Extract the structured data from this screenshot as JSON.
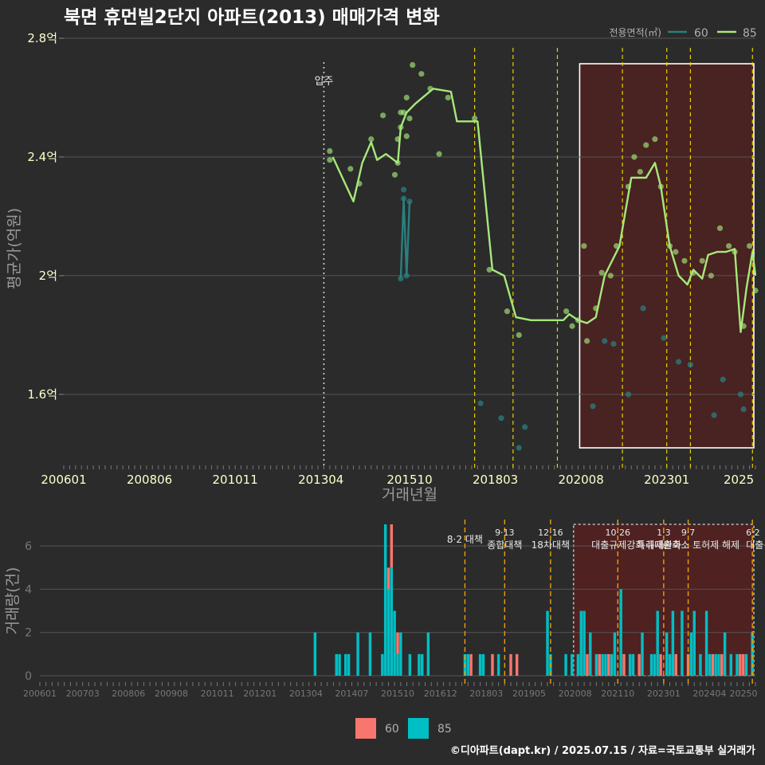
{
  "title": "북면 휴먼빌2단지 아파트(2013) 매매가격 변화",
  "caption": "©디아파트(dapt.kr) / 2025.07.15 / 자료=국토교통부 실거래가",
  "chart_data": [
    {
      "type": "line",
      "title": "북면 휴먼빌2단지 아파트(2013) 매매가격 변화",
      "xlabel": "거래년월",
      "ylabel": "평균가(억원)",
      "ylim": [
        1.35,
        2.8
      ],
      "xlim": [
        "2006-01",
        "2025-07"
      ],
      "yticks": [
        1.6,
        2.0,
        2.4,
        2.8
      ],
      "ytick_labels": [
        "1.6억",
        "2억",
        "2.4억",
        "2.8억"
      ],
      "xtick_labels": [
        "200601",
        "200806",
        "201011",
        "201304",
        "201510",
        "201803",
        "202008",
        "202301",
        "2025"
      ],
      "legend_title": "전용면적(㎡)",
      "legend_position": "top-right",
      "grid": true,
      "vline_label": "입주",
      "vline_date": "2013-05",
      "policy_dates": [
        "2017-08",
        "2018-09",
        "2019-12",
        "2021-10",
        "2023-01",
        "2023-09",
        "2025-06"
      ],
      "highlight_range": [
        "2020-07",
        "2025-07"
      ],
      "series": [
        {
          "name": "60",
          "color": "#2a7f7f",
          "line": [
            [
              "2015-07",
              1.99
            ],
            [
              "2015-08",
              2.26
            ],
            [
              "2015-09",
              2.0
            ],
            [
              "2015-10",
              2.25
            ]
          ],
          "points": [
            [
              "2015-07",
              1.99
            ],
            [
              "2015-08",
              2.29
            ],
            [
              "2015-08",
              2.26
            ],
            [
              "2015-09",
              2.0
            ],
            [
              "2015-10",
              2.25
            ],
            [
              "2017-10",
              1.57
            ],
            [
              "2018-05",
              1.52
            ],
            [
              "2018-11",
              1.42
            ],
            [
              "2019-01",
              1.49
            ],
            [
              "2020-12",
              1.56
            ],
            [
              "2021-04",
              1.78
            ],
            [
              "2021-07",
              1.77
            ],
            [
              "2021-12",
              1.6
            ],
            [
              "2022-05",
              1.89
            ],
            [
              "2022-12",
              1.79
            ],
            [
              "2023-05",
              1.71
            ],
            [
              "2023-09",
              1.7
            ],
            [
              "2024-05",
              1.53
            ],
            [
              "2024-08",
              1.65
            ],
            [
              "2025-02",
              1.6
            ],
            [
              "2025-03",
              1.55
            ]
          ]
        },
        {
          "name": "85",
          "color": "#a6e87a",
          "line": [
            [
              "2013-08",
              2.4
            ],
            [
              "2014-03",
              2.25
            ],
            [
              "2014-06",
              2.38
            ],
            [
              "2014-09",
              2.45
            ],
            [
              "2014-11",
              2.39
            ],
            [
              "2015-02",
              2.41
            ],
            [
              "2015-06",
              2.38
            ],
            [
              "2015-07",
              2.5
            ],
            [
              "2015-09",
              2.55
            ],
            [
              "2015-12",
              2.58
            ],
            [
              "2016-06",
              2.63
            ],
            [
              "2016-12",
              2.62
            ],
            [
              "2017-02",
              2.52
            ],
            [
              "2017-06",
              2.52
            ],
            [
              "2017-09",
              2.52
            ],
            [
              "2018-02",
              2.02
            ],
            [
              "2018-06",
              2.0
            ],
            [
              "2018-10",
              1.86
            ],
            [
              "2019-03",
              1.85
            ],
            [
              "2020-02",
              1.85
            ],
            [
              "2020-04",
              1.87
            ],
            [
              "2020-07",
              1.85
            ],
            [
              "2020-10",
              1.84
            ],
            [
              "2021-01",
              1.86
            ],
            [
              "2021-04",
              2.0
            ],
            [
              "2021-09",
              2.1
            ],
            [
              "2022-01",
              2.33
            ],
            [
              "2022-03",
              2.33
            ],
            [
              "2022-06",
              2.33
            ],
            [
              "2022-09",
              2.38
            ],
            [
              "2022-11",
              2.3
            ],
            [
              "2023-02",
              2.1
            ],
            [
              "2023-05",
              2.0
            ],
            [
              "2023-08",
              1.97
            ],
            [
              "2023-10",
              2.02
            ],
            [
              "2024-01",
              1.99
            ],
            [
              "2024-03",
              2.07
            ],
            [
              "2024-06",
              2.08
            ],
            [
              "2024-09",
              2.08
            ],
            [
              "2024-12",
              2.09
            ],
            [
              "2025-02",
              1.81
            ],
            [
              "2025-04",
              1.96
            ],
            [
              "2025-06",
              2.08
            ],
            [
              "2025-07",
              2.0
            ]
          ],
          "points": [
            [
              "2013-07",
              2.42
            ],
            [
              "2013-07",
              2.39
            ],
            [
              "2014-02",
              2.36
            ],
            [
              "2014-05",
              2.31
            ],
            [
              "2014-09",
              2.46
            ],
            [
              "2015-01",
              2.54
            ],
            [
              "2015-05",
              2.34
            ],
            [
              "2015-06",
              2.38
            ],
            [
              "2015-06",
              2.46
            ],
            [
              "2015-07",
              2.55
            ],
            [
              "2015-07",
              2.5
            ],
            [
              "2015-08",
              2.55
            ],
            [
              "2015-09",
              2.47
            ],
            [
              "2015-09",
              2.6
            ],
            [
              "2015-10",
              2.53
            ],
            [
              "2015-11",
              2.71
            ],
            [
              "2016-02",
              2.68
            ],
            [
              "2016-05",
              2.63
            ],
            [
              "2016-08",
              2.41
            ],
            [
              "2016-11",
              2.6
            ],
            [
              "2017-08",
              2.53
            ],
            [
              "2018-01",
              2.02
            ],
            [
              "2018-07",
              1.88
            ],
            [
              "2018-11",
              1.8
            ],
            [
              "2020-03",
              1.88
            ],
            [
              "2020-05",
              1.83
            ],
            [
              "2020-07",
              1.85
            ],
            [
              "2020-09",
              2.1
            ],
            [
              "2020-10",
              1.78
            ],
            [
              "2021-01",
              1.89
            ],
            [
              "2021-03",
              2.01
            ],
            [
              "2021-06",
              2.0
            ],
            [
              "2021-08",
              2.1
            ],
            [
              "2021-12",
              2.3
            ],
            [
              "2022-02",
              2.4
            ],
            [
              "2022-04",
              2.35
            ],
            [
              "2022-06",
              2.44
            ],
            [
              "2022-09",
              2.46
            ],
            [
              "2022-11",
              2.3
            ],
            [
              "2023-02",
              2.1
            ],
            [
              "2023-04",
              2.08
            ],
            [
              "2023-07",
              2.05
            ],
            [
              "2023-10",
              2.01
            ],
            [
              "2024-01",
              2.05
            ],
            [
              "2024-04",
              2.0
            ],
            [
              "2024-07",
              2.16
            ],
            [
              "2024-10",
              2.1
            ],
            [
              "2024-12",
              2.08
            ],
            [
              "2025-03",
              1.83
            ],
            [
              "2025-05",
              2.1
            ],
            [
              "2025-07",
              1.95
            ]
          ]
        }
      ]
    },
    {
      "type": "bar",
      "stacked": true,
      "xlabel": "",
      "ylabel": "거래량(건)",
      "ylim": [
        0,
        7
      ],
      "yticks": [
        0,
        2,
        4,
        6
      ],
      "xtick_labels": [
        "200601",
        "200703",
        "200806",
        "200908",
        "201011",
        "201201",
        "201304",
        "201407",
        "201510",
        "201612",
        "201803",
        "201905",
        "202008",
        "202110",
        "202301",
        "202404",
        "20250"
      ],
      "legend_position": "bottom",
      "policy_labels": [
        {
          "date": "2017-08",
          "lines": [
            "8·2 대책"
          ]
        },
        {
          "date": "2018-09",
          "lines": [
            "9·13",
            "종합대책"
          ]
        },
        {
          "date": "2019-12",
          "lines": [
            "12·16",
            "18차대책"
          ]
        },
        {
          "date": "2021-10",
          "lines": [
            "10·26",
            "대출규제강화"
          ]
        },
        {
          "date": "2023-01",
          "lines": [
            "1·3",
            "규제완화"
          ]
        },
        {
          "date": "2023-09",
          "lines": [
            "9·7",
            "특례대출축소 토허제 해제"
          ]
        },
        {
          "date": "2025-06",
          "lines": [
            "6·2",
            "대출규"
          ]
        }
      ],
      "highlight_range": [
        "2020-07",
        "2025-07"
      ],
      "series": [
        {
          "name": "60",
          "color": "#f8766d",
          "bars": [
            [
              "2015-07",
              1
            ],
            [
              "2015-08",
              2
            ],
            [
              "2015-10",
              1
            ],
            [
              "2017-10",
              1
            ],
            [
              "2018-05",
              1
            ],
            [
              "2018-11",
              1
            ],
            [
              "2019-01",
              1
            ],
            [
              "2020-12",
              1
            ],
            [
              "2021-04",
              1
            ],
            [
              "2021-07",
              1
            ],
            [
              "2021-12",
              1
            ],
            [
              "2022-05",
              1
            ],
            [
              "2022-12",
              1
            ],
            [
              "2023-05",
              1
            ],
            [
              "2023-09",
              1
            ],
            [
              "2024-05",
              1
            ],
            [
              "2024-08",
              1
            ],
            [
              "2025-02",
              1
            ],
            [
              "2025-03",
              1
            ]
          ]
        },
        {
          "name": "85",
          "color": "#00bfc4",
          "bars": [
            [
              "2013-07",
              2
            ],
            [
              "2014-02",
              1
            ],
            [
              "2014-03",
              1
            ],
            [
              "2014-05",
              1
            ],
            [
              "2014-06",
              1
            ],
            [
              "2014-09",
              2
            ],
            [
              "2015-01",
              2
            ],
            [
              "2015-05",
              1
            ],
            [
              "2015-06",
              7
            ],
            [
              "2015-07",
              4
            ],
            [
              "2015-08",
              5
            ],
            [
              "2015-09",
              3
            ],
            [
              "2015-10",
              1
            ],
            [
              "2015-11",
              2
            ],
            [
              "2016-02",
              1
            ],
            [
              "2016-05",
              1
            ],
            [
              "2016-06",
              1
            ],
            [
              "2016-08",
              2
            ],
            [
              "2017-08",
              1
            ],
            [
              "2017-09",
              1
            ],
            [
              "2018-01",
              1
            ],
            [
              "2018-02",
              1
            ],
            [
              "2018-07",
              1
            ],
            [
              "2019-11",
              3
            ],
            [
              "2019-12",
              1
            ],
            [
              "2020-05",
              1
            ],
            [
              "2020-07",
              1
            ],
            [
              "2020-09",
              1
            ],
            [
              "2020-10",
              3
            ],
            [
              "2020-11",
              3
            ],
            [
              "2021-01",
              2
            ],
            [
              "2021-03",
              1
            ],
            [
              "2021-05",
              1
            ],
            [
              "2021-06",
              1
            ],
            [
              "2021-08",
              1
            ],
            [
              "2021-09",
              2
            ],
            [
              "2021-11",
              4
            ],
            [
              "2022-02",
              1
            ],
            [
              "2022-03",
              1
            ],
            [
              "2022-06",
              2
            ],
            [
              "2022-09",
              1
            ],
            [
              "2022-10",
              1
            ],
            [
              "2022-11",
              3
            ],
            [
              "2023-02",
              2
            ],
            [
              "2023-03",
              1
            ],
            [
              "2023-04",
              3
            ],
            [
              "2023-07",
              3
            ],
            [
              "2023-10",
              2
            ],
            [
              "2023-11",
              3
            ],
            [
              "2024-01",
              1
            ],
            [
              "2024-03",
              3
            ],
            [
              "2024-04",
              1
            ],
            [
              "2024-06",
              1
            ],
            [
              "2024-07",
              1
            ],
            [
              "2024-09",
              2
            ],
            [
              "2024-11",
              1
            ],
            [
              "2025-01",
              1
            ],
            [
              "2025-04",
              1
            ],
            [
              "2025-06",
              2
            ]
          ]
        }
      ]
    }
  ]
}
